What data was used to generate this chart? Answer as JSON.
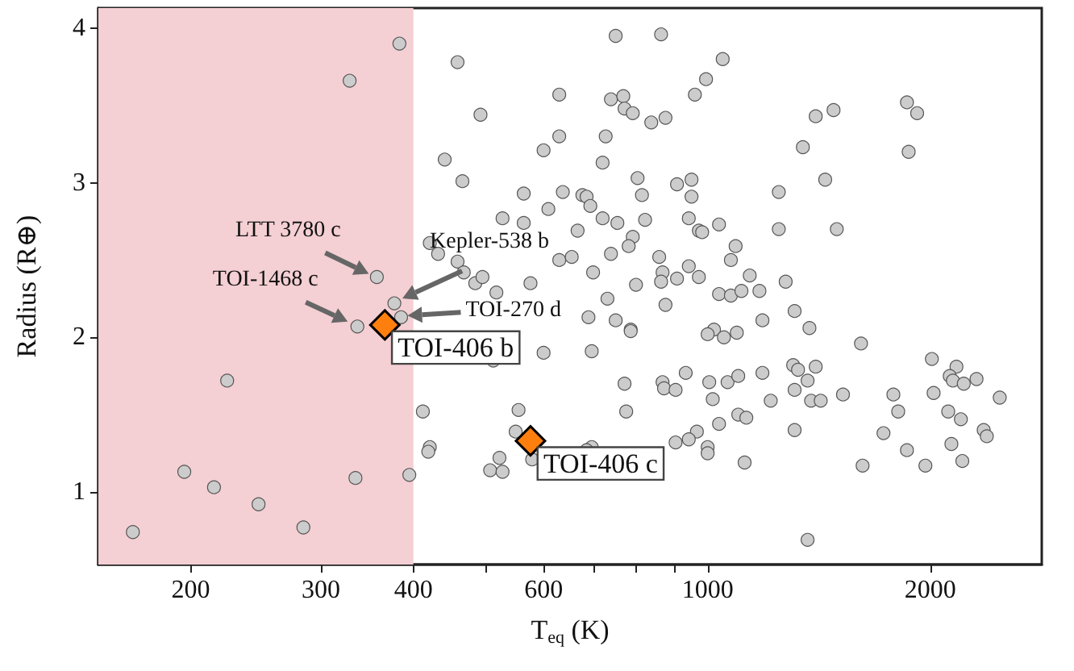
{
  "chart_data": {
    "type": "scatter",
    "xlabel": "T$_{eq}$ (K)",
    "ylabel": "Radius (R⊕)",
    "log": "x",
    "xlim": [
      150,
      2830
    ],
    "ylim": [
      0.53,
      4.13
    ],
    "xticks": [
      200,
      300,
      400,
      {
        "value": 500,
        "label": null
      },
      600,
      {
        "value": 700,
        "label": null
      },
      {
        "value": 800,
        "label": null
      },
      {
        "value": 900,
        "label": null
      },
      1000,
      2000
    ],
    "yticks": [
      1,
      2,
      3,
      4
    ],
    "grid": false,
    "bands": [
      {
        "axis": "x",
        "from": 150,
        "to": 400,
        "color": "#f4cfd3"
      }
    ],
    "series": [
      {
        "color": "#cccccc",
        "marker": "circle",
        "x": [
          328,
          383,
          459,
          493,
          441,
          466,
          564,
          600,
          528,
          564,
          609,
          421,
          432,
          459,
          468,
          485,
          496,
          576,
          518,
          357,
          377,
          385,
          336,
          751,
          865,
          1048,
          995,
          961,
          630,
          740,
          769,
          772,
          792,
          839,
          877,
          1400,
          1480,
          1860,
          1920,
          1870,
          1345,
          630,
          728,
          721,
          804,
          909,
          951,
          951,
          815,
          1442,
          1248,
          637,
          677,
          686,
          694,
          721,
          755,
          823,
          943,
          973,
          983,
          1036,
          1248,
          1495,
          667,
          792,
          782,
          740,
          1091,
          1075,
          860,
          943,
          869,
          865,
          909,
          973,
          700,
          800,
          1140,
          1275,
          1036,
          1075,
          1111,
          1175,
          877,
          732,
          751,
          1311,
          1373,
          1186,
          787,
          690,
          630,
          655,
          224,
          196,
          215,
          247,
          167,
          284,
          334,
          395,
          412,
          421,
          419,
          555,
          550,
          523,
          508,
          528,
          579,
          600,
          513,
          787,
          1020,
          1000,
          1052,
          1095,
          1612,
          697,
          2010,
          2170,
          2125,
          2146,
          2220,
          2310,
          772,
          869,
          873,
          905,
          934,
          1005,
          1016,
          1064,
          1100,
          1186,
          1305,
          1325,
          1400,
          1365,
          1311,
          1380,
          1422,
          1524,
          1783,
          1810,
          2021,
          2483,
          2115,
          2200,
          2362,
          2385,
          1729,
          1860,
          1620,
          1970,
          2136,
          2210,
          776,
          1217,
          1100,
          1128,
          1036,
          967,
          943,
          905,
          1000,
          1000,
          1122,
          1311,
          1365,
          697,
          686
        ],
        "values": [
          3.66,
          3.9,
          3.78,
          3.44,
          3.15,
          3.01,
          2.93,
          3.21,
          2.77,
          2.74,
          2.83,
          2.61,
          2.54,
          2.49,
          2.42,
          2.35,
          2.39,
          2.35,
          2.29,
          2.39,
          2.22,
          2.13,
          2.07,
          3.95,
          3.96,
          3.8,
          3.67,
          3.57,
          3.57,
          3.54,
          3.56,
          3.48,
          3.45,
          3.39,
          3.42,
          3.43,
          3.47,
          3.52,
          3.45,
          3.2,
          3.23,
          3.3,
          3.3,
          3.13,
          3.03,
          2.99,
          3.02,
          2.91,
          2.92,
          3.02,
          2.94,
          2.94,
          2.92,
          2.91,
          2.85,
          2.77,
          2.74,
          2.76,
          2.77,
          2.69,
          2.68,
          2.73,
          2.7,
          2.7,
          2.69,
          2.65,
          2.59,
          2.54,
          2.59,
          2.5,
          2.52,
          2.46,
          2.42,
          2.36,
          2.38,
          2.39,
          2.42,
          2.34,
          2.4,
          2.36,
          2.28,
          2.27,
          2.3,
          2.3,
          2.21,
          2.25,
          2.11,
          2.17,
          2.06,
          2.11,
          2.05,
          2.13,
          2.5,
          2.52,
          1.72,
          1.13,
          1.03,
          0.92,
          0.74,
          0.77,
          1.09,
          1.11,
          1.52,
          1.29,
          1.26,
          1.53,
          1.39,
          1.22,
          1.14,
          1.13,
          1.21,
          1.9,
          1.85,
          2.04,
          2.05,
          2.02,
          2.0,
          2.03,
          1.96,
          1.91,
          1.86,
          1.81,
          1.75,
          1.72,
          1.7,
          1.73,
          1.7,
          1.71,
          1.67,
          1.66,
          1.77,
          1.71,
          1.6,
          1.71,
          1.75,
          1.77,
          1.82,
          1.79,
          1.81,
          1.72,
          1.66,
          1.59,
          1.59,
          1.63,
          1.63,
          1.52,
          1.64,
          1.61,
          1.52,
          1.47,
          1.4,
          1.36,
          1.38,
          1.27,
          1.17,
          1.17,
          1.31,
          1.2,
          1.52,
          1.59,
          1.5,
          1.48,
          1.44,
          1.39,
          1.34,
          1.32,
          1.29,
          1.25,
          1.19,
          1.4,
          0.69,
          1.29,
          1.27
        ]
      },
      {
        "color": "#ff7f0e",
        "marker": "diamond",
        "x": [
          366,
          576
        ],
        "values": [
          2.08,
          1.33
        ]
      }
    ],
    "annotations": [
      {
        "text": "LTT 3780 c",
        "x": 357,
        "y": 2.39
      },
      {
        "text": "Kepler-538 b",
        "x": 377,
        "y": 2.22
      },
      {
        "text": "TOI-1468 c",
        "x": 336,
        "y": 2.07
      },
      {
        "text": "TOI-270 d",
        "x": 385,
        "y": 2.13
      },
      {
        "text": "TOI-406 b",
        "x": 366,
        "y": 2.08
      },
      {
        "text": "TOI-406 c",
        "x": 576,
        "y": 1.33
      }
    ]
  }
}
